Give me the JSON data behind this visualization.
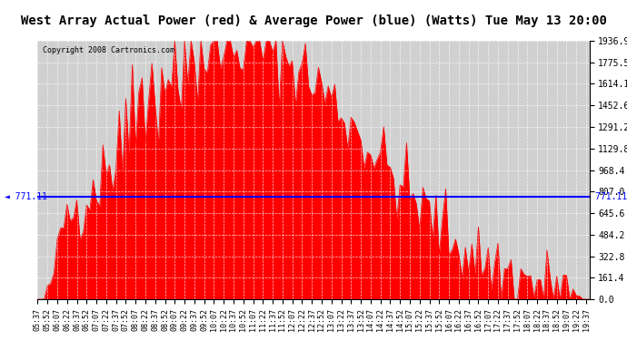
{
  "title": "West Array Actual Power (red) & Average Power (blue) (Watts) Tue May 13 20:00",
  "copyright": "Copyright 2008 Cartronics.com",
  "avg_power": 771.11,
  "y_max": 1936.9,
  "y_min": 0.0,
  "y_ticks": [
    0.0,
    161.4,
    322.8,
    484.2,
    645.6,
    807.0,
    968.4,
    1129.8,
    1291.2,
    1452.6,
    1614.1,
    1775.5,
    1936.9
  ],
  "background_color": "#e8e8e8",
  "plot_bg_color": "#d0d0d0",
  "grid_color": "#ffffff",
  "fill_color": "#ff0000",
  "line_color": "#ff0000",
  "avg_line_color": "#0000ff",
  "title_bg": "#ffffff",
  "n_points": 170
}
